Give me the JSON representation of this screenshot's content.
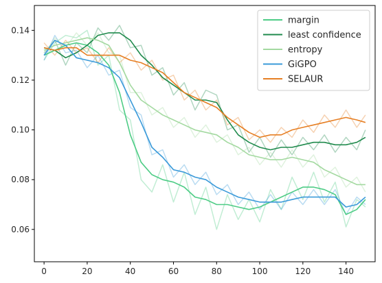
{
  "chart_data": {
    "type": "line",
    "title": "",
    "xlabel": "",
    "ylabel": "",
    "xlim": [
      -4.5,
      153.5
    ],
    "ylim": [
      0.047,
      0.15
    ],
    "xticks": [
      0,
      20,
      40,
      60,
      80,
      100,
      120,
      140
    ],
    "yticks": [
      0.06,
      0.08,
      0.1,
      0.12,
      0.14
    ],
    "ytick_labels": [
      "0.06",
      "0.08",
      "0.10",
      "0.12",
      "0.14"
    ],
    "grid": false,
    "legend_position": "top-right",
    "series": [
      {
        "name": "margin",
        "color": "#4dcc85",
        "x": [
          0,
          5,
          10,
          15,
          20,
          25,
          30,
          35,
          40,
          45,
          50,
          55,
          60,
          65,
          70,
          75,
          80,
          85,
          90,
          95,
          100,
          105,
          110,
          115,
          120,
          125,
          130,
          135,
          140,
          145,
          149
        ],
        "y": [
          0.13,
          0.132,
          0.134,
          0.135,
          0.134,
          0.131,
          0.126,
          0.115,
          0.098,
          0.087,
          0.082,
          0.08,
          0.079,
          0.077,
          0.073,
          0.072,
          0.07,
          0.07,
          0.069,
          0.068,
          0.069,
          0.071,
          0.073,
          0.075,
          0.077,
          0.077,
          0.076,
          0.074,
          0.066,
          0.068,
          0.072
        ],
        "raw": [
          0.128,
          0.135,
          0.138,
          0.137,
          0.14,
          0.126,
          0.13,
          0.108,
          0.104,
          0.08,
          0.075,
          0.086,
          0.071,
          0.083,
          0.066,
          0.077,
          0.06,
          0.074,
          0.064,
          0.072,
          0.063,
          0.076,
          0.068,
          0.081,
          0.072,
          0.083,
          0.071,
          0.079,
          0.061,
          0.072,
          0.069
        ]
      },
      {
        "name": "least confidence",
        "color": "#1f8a4c",
        "x": [
          0,
          5,
          10,
          15,
          20,
          25,
          30,
          35,
          40,
          45,
          50,
          55,
          60,
          65,
          70,
          75,
          80,
          85,
          90,
          95,
          100,
          105,
          110,
          115,
          120,
          125,
          130,
          135,
          140,
          145,
          149
        ],
        "y": [
          0.133,
          0.132,
          0.129,
          0.131,
          0.134,
          0.138,
          0.139,
          0.139,
          0.136,
          0.13,
          0.126,
          0.121,
          0.118,
          0.115,
          0.112,
          0.112,
          0.111,
          0.104,
          0.098,
          0.095,
          0.093,
          0.092,
          0.093,
          0.093,
          0.094,
          0.095,
          0.095,
          0.094,
          0.094,
          0.095,
          0.097
        ],
        "raw": [
          0.131,
          0.136,
          0.126,
          0.135,
          0.131,
          0.141,
          0.136,
          0.142,
          0.133,
          0.134,
          0.122,
          0.125,
          0.114,
          0.119,
          0.108,
          0.116,
          0.114,
          0.1,
          0.102,
          0.091,
          0.097,
          0.089,
          0.096,
          0.09,
          0.097,
          0.092,
          0.098,
          0.091,
          0.097,
          0.092,
          0.1
        ]
      },
      {
        "name": "entropy",
        "color": "#a3d9a0",
        "x": [
          0,
          5,
          10,
          15,
          20,
          25,
          30,
          35,
          40,
          45,
          50,
          55,
          60,
          65,
          70,
          75,
          80,
          85,
          90,
          95,
          100,
          105,
          110,
          115,
          120,
          125,
          130,
          135,
          140,
          145,
          149
        ],
        "y": [
          0.132,
          0.134,
          0.135,
          0.136,
          0.137,
          0.136,
          0.134,
          0.127,
          0.118,
          0.112,
          0.109,
          0.106,
          0.104,
          0.102,
          0.1,
          0.099,
          0.098,
          0.095,
          0.093,
          0.09,
          0.089,
          0.088,
          0.088,
          0.089,
          0.088,
          0.087,
          0.084,
          0.082,
          0.08,
          0.078,
          0.078
        ],
        "raw": [
          0.13,
          0.137,
          0.133,
          0.139,
          0.134,
          0.139,
          0.131,
          0.13,
          0.115,
          0.115,
          0.106,
          0.109,
          0.101,
          0.105,
          0.097,
          0.102,
          0.095,
          0.098,
          0.09,
          0.093,
          0.086,
          0.091,
          0.085,
          0.092,
          0.085,
          0.09,
          0.081,
          0.085,
          0.077,
          0.081,
          0.075
        ]
      },
      {
        "name": "GiGPO",
        "color": "#3a9ad9",
        "x": [
          0,
          5,
          10,
          15,
          20,
          25,
          30,
          35,
          40,
          45,
          50,
          55,
          60,
          65,
          70,
          75,
          80,
          85,
          90,
          95,
          100,
          105,
          110,
          115,
          120,
          125,
          130,
          135,
          140,
          145,
          149
        ],
        "y": [
          0.13,
          0.136,
          0.134,
          0.129,
          0.128,
          0.127,
          0.125,
          0.121,
          0.112,
          0.103,
          0.093,
          0.089,
          0.084,
          0.083,
          0.081,
          0.08,
          0.077,
          0.075,
          0.073,
          0.072,
          0.071,
          0.071,
          0.071,
          0.072,
          0.073,
          0.073,
          0.073,
          0.073,
          0.069,
          0.07,
          0.073
        ],
        "raw": [
          0.128,
          0.138,
          0.131,
          0.132,
          0.125,
          0.13,
          0.122,
          0.124,
          0.109,
          0.106,
          0.09,
          0.092,
          0.081,
          0.086,
          0.078,
          0.083,
          0.074,
          0.078,
          0.07,
          0.075,
          0.068,
          0.074,
          0.068,
          0.075,
          0.07,
          0.076,
          0.07,
          0.076,
          0.066,
          0.073,
          0.07
        ]
      },
      {
        "name": "SELAUR",
        "color": "#e67e22",
        "x": [
          0,
          5,
          10,
          15,
          20,
          25,
          30,
          35,
          40,
          45,
          50,
          55,
          60,
          65,
          70,
          75,
          80,
          85,
          90,
          95,
          100,
          105,
          110,
          115,
          120,
          125,
          130,
          135,
          140,
          145,
          149
        ],
        "y": [
          0.133,
          0.132,
          0.133,
          0.133,
          0.13,
          0.13,
          0.13,
          0.13,
          0.128,
          0.127,
          0.125,
          0.123,
          0.119,
          0.115,
          0.113,
          0.111,
          0.109,
          0.105,
          0.102,
          0.099,
          0.097,
          0.098,
          0.098,
          0.1,
          0.101,
          0.102,
          0.103,
          0.104,
          0.105,
          0.104,
          0.103
        ],
        "raw": [
          0.135,
          0.13,
          0.136,
          0.131,
          0.133,
          0.127,
          0.133,
          0.127,
          0.131,
          0.124,
          0.128,
          0.12,
          0.122,
          0.112,
          0.116,
          0.108,
          0.112,
          0.102,
          0.105,
          0.096,
          0.1,
          0.095,
          0.101,
          0.097,
          0.104,
          0.099,
          0.106,
          0.101,
          0.108,
          0.101,
          0.106
        ]
      }
    ]
  }
}
